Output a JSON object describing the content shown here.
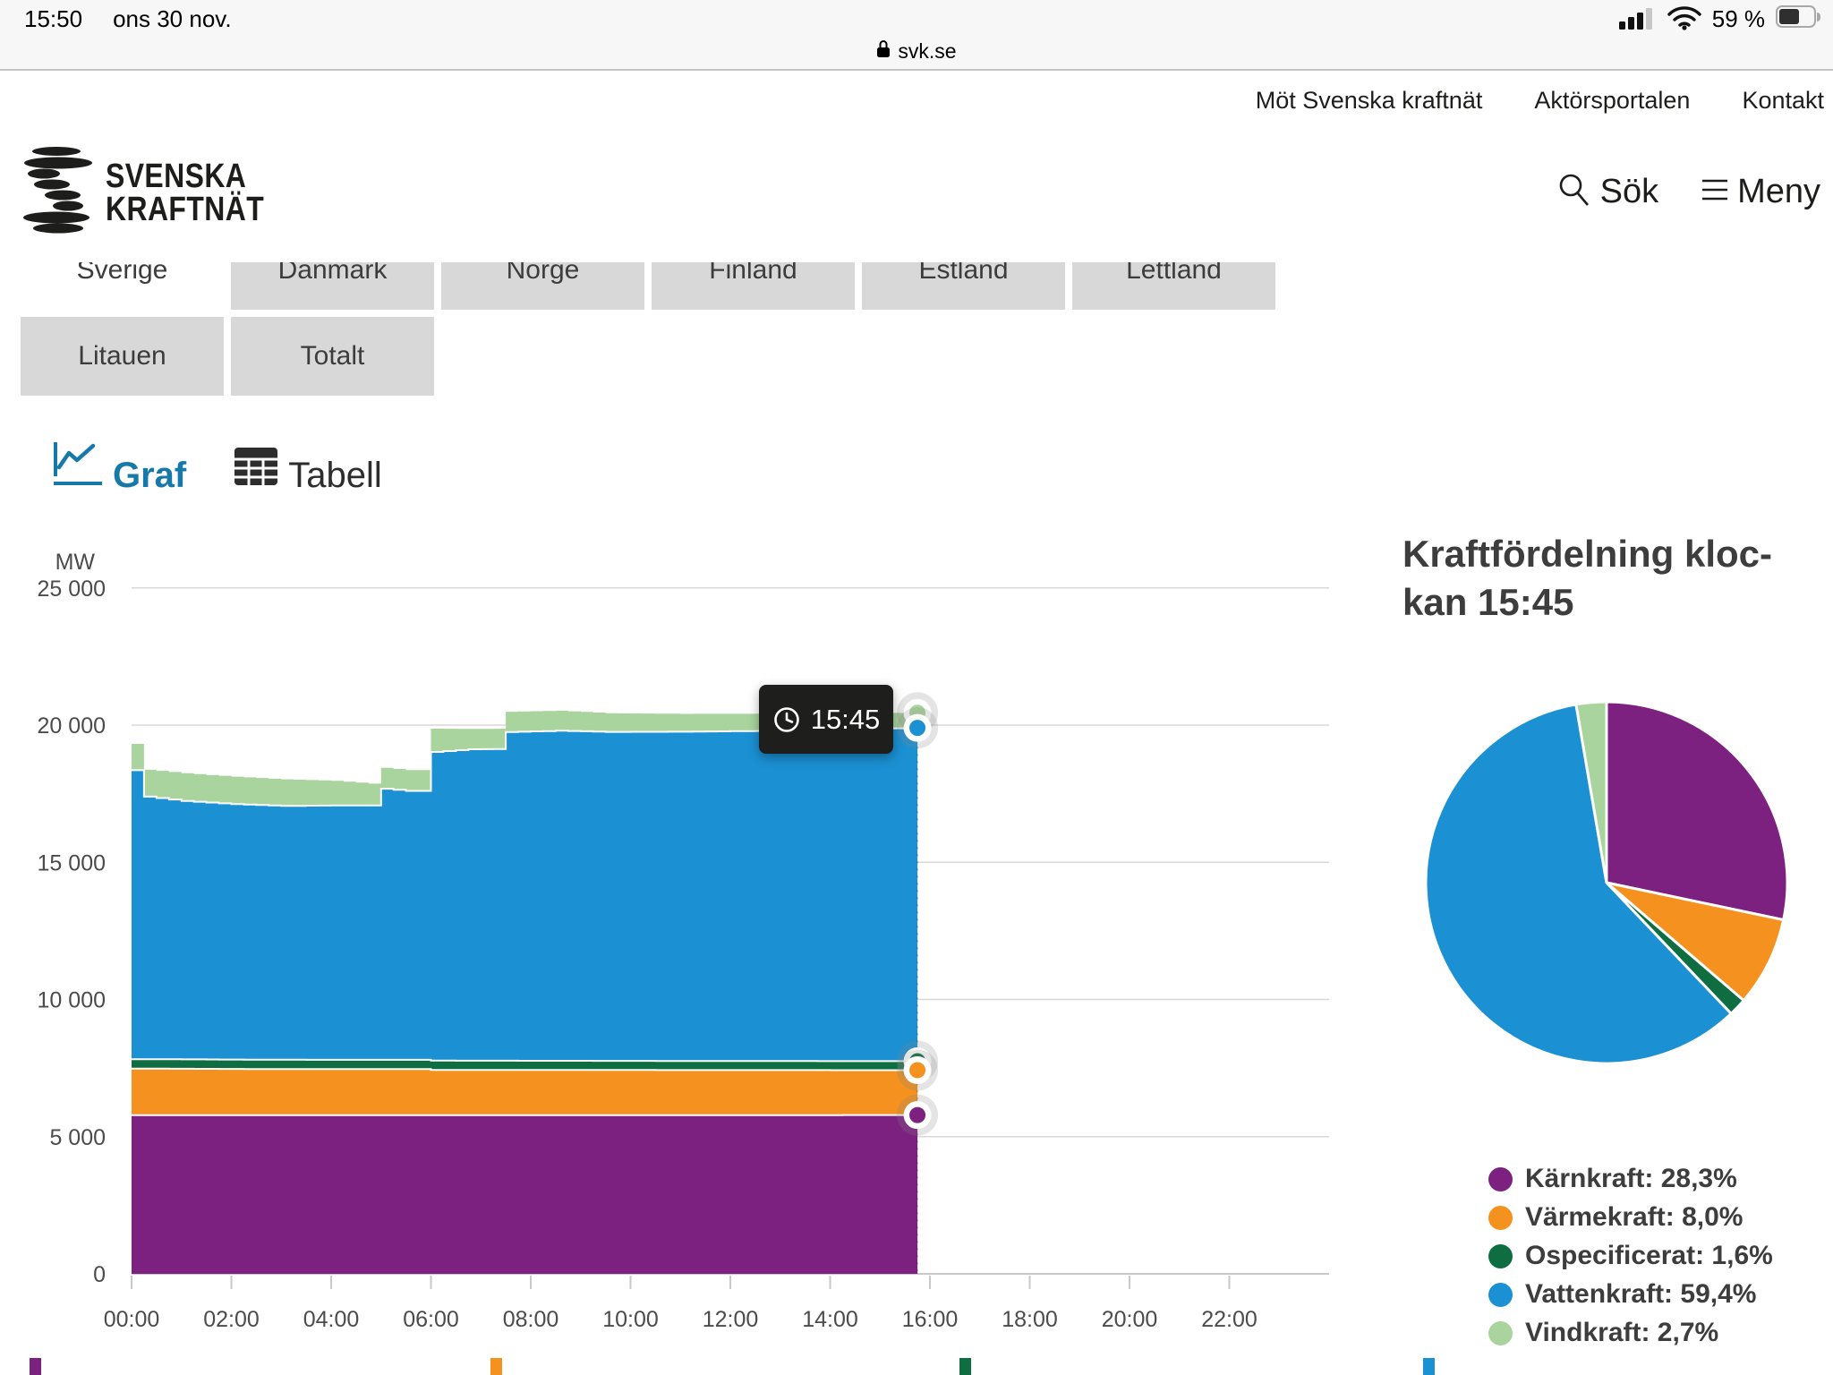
{
  "status_bar": {
    "time": "15:50",
    "date": "ons 30 nov.",
    "battery_label": "59 %"
  },
  "url_bar": {
    "domain": "svk.se"
  },
  "top_nav": {
    "links": [
      {
        "label": "Möt Svenska kraftnät"
      },
      {
        "label": "Aktörsportalen"
      },
      {
        "label": "Kontakt"
      }
    ]
  },
  "brand": {
    "name_line1": "SVENSKA",
    "name_line2": "KRAFTNÄT"
  },
  "header_actions": {
    "search_label": "Sök",
    "menu_label": "Meny"
  },
  "country_tabs": [
    {
      "label": "Sverige",
      "active": true,
      "row": 1
    },
    {
      "label": "Danmark",
      "active": false,
      "row": 1
    },
    {
      "label": "Norge",
      "active": false,
      "row": 1
    },
    {
      "label": "Finland",
      "active": false,
      "row": 1
    },
    {
      "label": "Estland",
      "active": false,
      "row": 1
    },
    {
      "label": "Lettland",
      "active": false,
      "row": 1
    },
    {
      "label": "Litauen",
      "active": false,
      "row": 2
    },
    {
      "label": "Totalt",
      "active": false,
      "row": 2
    }
  ],
  "view_toggle": {
    "graf_label": "Graf",
    "tabell_label": "Tabell",
    "active": "Graf"
  },
  "chart_data": {
    "type": "area",
    "stacked": true,
    "unit": "MW",
    "ylabel": "MW",
    "ylim": [
      0,
      25000
    ],
    "yticks": [
      {
        "value": 0,
        "label": "0"
      },
      {
        "value": 5000,
        "label": "5 000"
      },
      {
        "value": 10000,
        "label": "10 000"
      },
      {
        "value": 15000,
        "label": "15 000"
      },
      {
        "value": 20000,
        "label": "20 000"
      },
      {
        "value": 25000,
        "label": "25 000"
      }
    ],
    "xticks": [
      {
        "hour": 0,
        "label": "00:00"
      },
      {
        "hour": 2,
        "label": "02:00"
      },
      {
        "hour": 4,
        "label": "04:00"
      },
      {
        "hour": 6,
        "label": "06:00"
      },
      {
        "hour": 8,
        "label": "08:00"
      },
      {
        "hour": 10,
        "label": "10:00"
      },
      {
        "hour": 12,
        "label": "12:00"
      },
      {
        "hour": 14,
        "label": "14:00"
      },
      {
        "hour": 16,
        "label": "16:00"
      },
      {
        "hour": 18,
        "label": "18:00"
      },
      {
        "hour": 20,
        "label": "20:00"
      },
      {
        "hour": 22,
        "label": "22:00"
      }
    ],
    "x_axis_end_hour": 24,
    "data_end_hour": 15.75,
    "step_minutes": 15,
    "tooltip_time": "15:45",
    "series": [
      {
        "name": "Kärnkraft",
        "color": "#7d2180",
        "anchors": [
          [
            0,
            5780
          ],
          [
            15.75,
            5787
          ]
        ]
      },
      {
        "name": "Värmekraft",
        "color": "#f5911e",
        "anchors": [
          [
            0,
            1700
          ],
          [
            3,
            1680
          ],
          [
            5.75,
            1680
          ],
          [
            6,
            1650
          ],
          [
            12,
            1640
          ],
          [
            15.75,
            1636
          ]
        ]
      },
      {
        "name": "Ospecificerat",
        "color": "#0e6e41",
        "anchors": [
          [
            0,
            345
          ],
          [
            15.75,
            327
          ]
        ]
      },
      {
        "name": "Vattenkraft",
        "color": "#1b90d3",
        "anchors": [
          [
            0,
            10530
          ],
          [
            0.25,
            9570
          ],
          [
            1,
            9420
          ],
          [
            2,
            9310
          ],
          [
            3,
            9250
          ],
          [
            4,
            9270
          ],
          [
            4.75,
            9270
          ],
          [
            5,
            9880
          ],
          [
            5.5,
            9800
          ],
          [
            5.75,
            9800
          ],
          [
            6,
            11250
          ],
          [
            6.75,
            11350
          ],
          [
            7.25,
            11360
          ],
          [
            7.5,
            11980
          ],
          [
            8.5,
            12030
          ],
          [
            9.5,
            11990
          ],
          [
            11,
            12000
          ],
          [
            13,
            12040
          ],
          [
            14,
            12090
          ],
          [
            15.75,
            12148
          ]
        ]
      },
      {
        "name": "Vindkraft",
        "color": "#a9d49d",
        "anchors": [
          [
            0,
            960
          ],
          [
            0.25,
            980
          ],
          [
            1,
            1010
          ],
          [
            2,
            1000
          ],
          [
            3,
            970
          ],
          [
            4,
            900
          ],
          [
            5,
            760
          ],
          [
            5.75,
            760
          ],
          [
            6,
            850
          ],
          [
            6.75,
            740
          ],
          [
            7.5,
            740
          ],
          [
            8.5,
            730
          ],
          [
            9.5,
            680
          ],
          [
            11,
            650
          ],
          [
            13,
            620
          ],
          [
            14,
            590
          ],
          [
            15.75,
            552
          ]
        ]
      }
    ]
  },
  "pie": {
    "title": "Kraftfördelning klockan 15:45",
    "title_lines": [
      "Kraftfördelning kloc-",
      "kan 15:45"
    ],
    "slices": [
      {
        "name": "Kärnkraft",
        "percent": 28.3,
        "percent_label": "28,3%",
        "color": "#7d2180"
      },
      {
        "name": "Värmekraft",
        "percent": 8.0,
        "percent_label": "8,0%",
        "color": "#f5911e"
      },
      {
        "name": "Ospecificerat",
        "percent": 1.6,
        "percent_label": "1,6%",
        "color": "#0e6e41"
      },
      {
        "name": "Vattenkraft",
        "percent": 59.4,
        "percent_label": "59,4%",
        "color": "#1b90d3"
      },
      {
        "name": "Vindkraft",
        "percent": 2.7,
        "percent_label": "2,7%",
        "color": "#a9d49d"
      }
    ]
  },
  "bottom_partials": [
    {
      "name": "Kärnkraft",
      "color": "#7d2180"
    },
    {
      "name": "Värmekraft",
      "color": "#f5911e"
    },
    {
      "name": "Ospecificerat",
      "color": "#0e6e41"
    },
    {
      "name": "Vattenkraft",
      "color": "#1b90d3"
    }
  ]
}
